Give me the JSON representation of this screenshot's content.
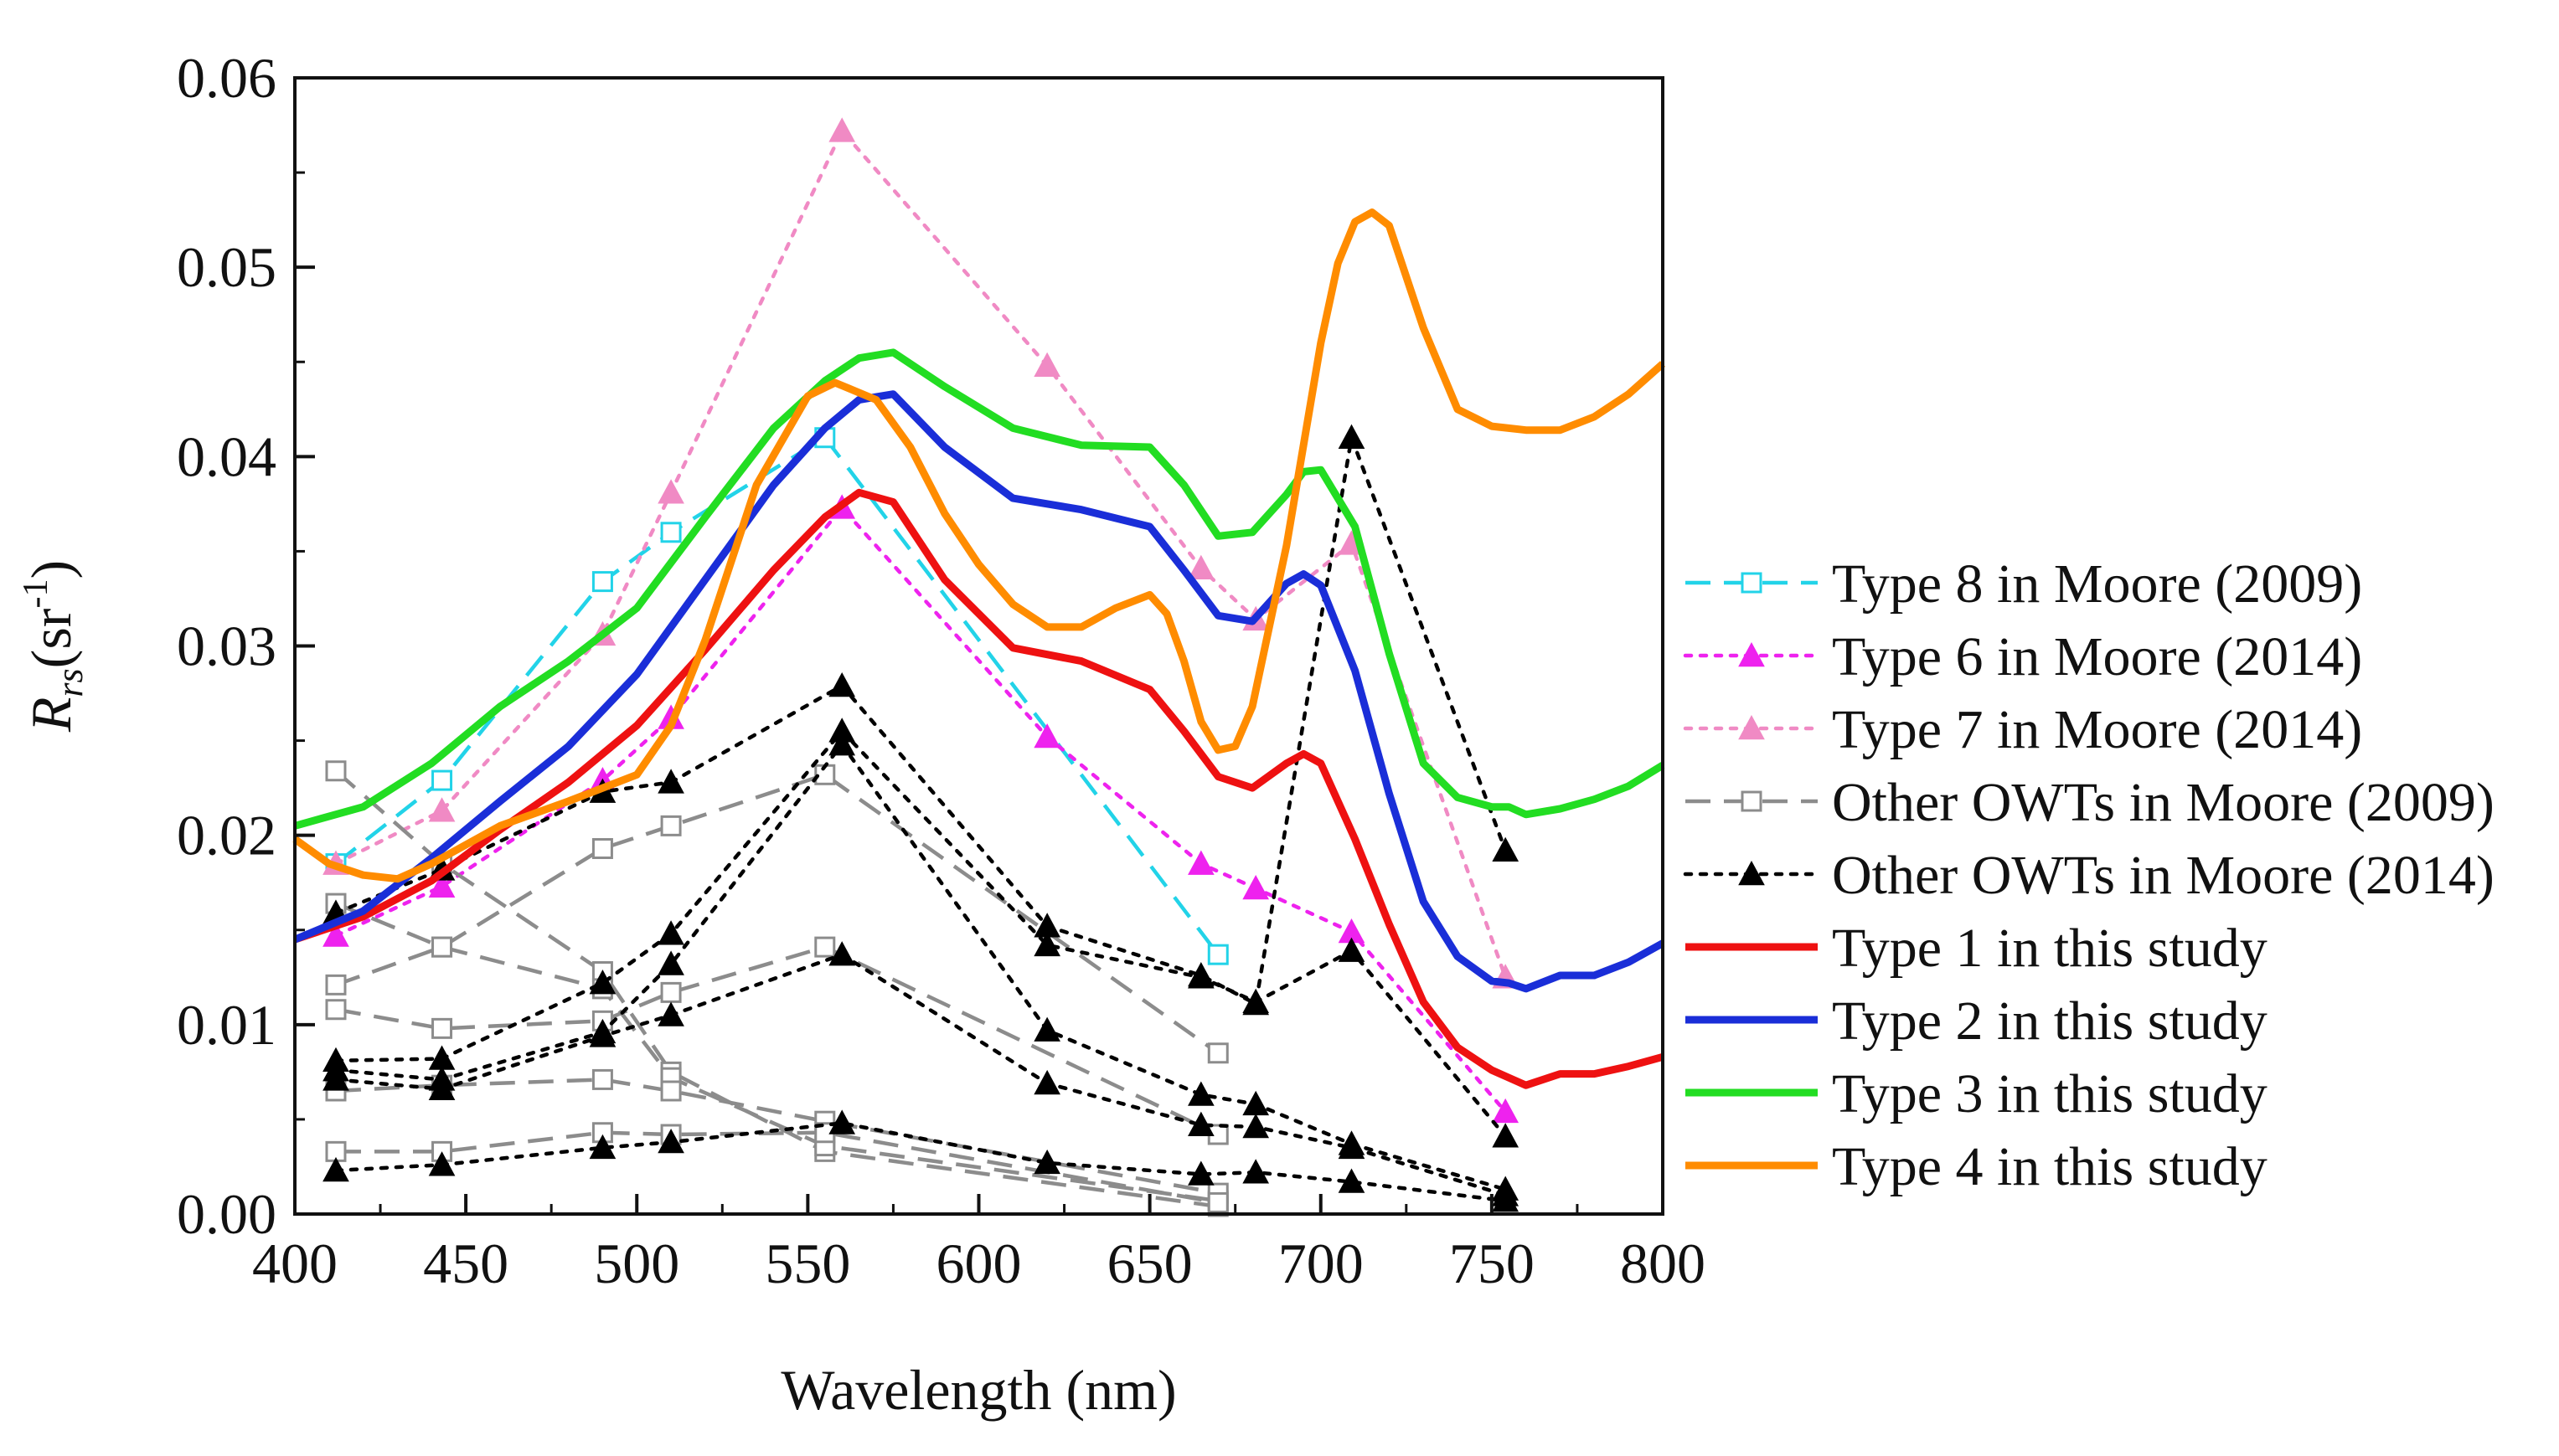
{
  "chart_data": {
    "type": "line",
    "title": "",
    "xlabel": "Wavelength (nm)",
    "ylabel": {
      "base": "R",
      "sub": "rs",
      "unit_pre": "(sr",
      "unit_sup": "-1",
      "unit_post": ")"
    },
    "xlim": [
      400,
      800
    ],
    "ylim": [
      0,
      0.06
    ],
    "xticks": [
      400,
      450,
      500,
      550,
      600,
      650,
      700,
      750,
      800
    ],
    "xtick_labels": [
      "400",
      "450",
      "500",
      "550",
      "600",
      "650",
      "700",
      "750",
      "800"
    ],
    "yticks": [
      0,
      0.01,
      0.02,
      0.03,
      0.04,
      0.05,
      0.06
    ],
    "ytick_labels": [
      "0.00",
      "0.01",
      "0.02",
      "0.03",
      "0.04",
      "0.05",
      "0.06"
    ],
    "grid": false,
    "legend_position": "right",
    "series": [
      {
        "name": "Type 8 in Moore (2009)",
        "color": "#22d3e8",
        "dash": "dash",
        "marker": "open-square",
        "x": [
          412,
          443,
          490,
          510,
          555,
          670
        ],
        "y": [
          0.0185,
          0.0229,
          0.0334,
          0.036,
          0.041,
          0.0137
        ]
      },
      {
        "name": "Type 6 in Moore (2014)",
        "color": "#ee22ee",
        "dash": "dot",
        "marker": "filled-triangle",
        "x": [
          412,
          443,
          490,
          510,
          560,
          620,
          665,
          681,
          709,
          754
        ],
        "y": [
          0.0147,
          0.0173,
          0.0229,
          0.0262,
          0.0373,
          0.0252,
          0.0185,
          0.0172,
          0.0149,
          0.0054
        ]
      },
      {
        "name": "Type 7 in Moore (2014)",
        "color": "#f08ac4",
        "dash": "dot",
        "marker": "filled-triangle",
        "x": [
          412,
          443,
          490,
          510,
          560,
          620,
          665,
          681,
          709,
          754
        ],
        "y": [
          0.0185,
          0.0213,
          0.0306,
          0.0381,
          0.0572,
          0.0448,
          0.0341,
          0.0314,
          0.0354,
          0.0125
        ]
      },
      {
        "name": "Other OWTs in Moore (2009)",
        "color": "#8c8c8c",
        "dash": "dash",
        "marker": "open-square",
        "legend": true,
        "x": [
          412,
          443,
          490,
          510,
          555,
          670
        ],
        "y": [
          0.0234,
          0.0185,
          0.0128,
          0.0075,
          0.0033,
          0.0004
        ]
      },
      {
        "name": "Other OWTs in Moore (2009)",
        "color": "#8c8c8c",
        "dash": "dash",
        "marker": "open-square",
        "legend": false,
        "x": [
          412,
          443,
          490,
          510,
          555,
          670
        ],
        "y": [
          0.0164,
          0.0141,
          0.0119,
          0.0072,
          0.0036,
          0.0007
        ]
      },
      {
        "name": "Other OWTs in Moore (2009)",
        "color": "#8c8c8c",
        "dash": "dash",
        "marker": "open-square",
        "legend": false,
        "x": [
          412,
          443,
          490,
          510,
          555,
          670
        ],
        "y": [
          0.0121,
          0.0141,
          0.0193,
          0.0205,
          0.0232,
          0.0085
        ]
      },
      {
        "name": "Other OWTs in Moore (2009)",
        "color": "#8c8c8c",
        "dash": "dash",
        "marker": "open-square",
        "legend": false,
        "x": [
          412,
          443,
          490,
          510,
          555,
          670
        ],
        "y": [
          0.0108,
          0.0098,
          0.0102,
          0.0117,
          0.0141,
          0.0042
        ]
      },
      {
        "name": "Other OWTs in Moore (2009)",
        "color": "#8c8c8c",
        "dash": "dash",
        "marker": "open-square",
        "legend": false,
        "x": [
          412,
          443,
          490,
          510,
          555,
          670
        ],
        "y": [
          0.0065,
          0.0068,
          0.0071,
          0.0065,
          0.0049,
          0.0011
        ]
      },
      {
        "name": "Other OWTs in Moore (2009)",
        "color": "#8c8c8c",
        "dash": "dash",
        "marker": "open-square",
        "legend": false,
        "x": [
          412,
          443,
          490,
          510,
          555,
          670
        ],
        "y": [
          0.0033,
          0.0033,
          0.0043,
          0.0042,
          0.0043,
          0.0006
        ]
      },
      {
        "name": "Other OWTs in Moore (2014)",
        "color": "#000000",
        "dash": "dot",
        "marker": "filled-triangle",
        "legend": true,
        "x": [
          412,
          443,
          490,
          510,
          560,
          620,
          665,
          681,
          709,
          754
        ],
        "y": [
          0.0159,
          0.0182,
          0.0223,
          0.0228,
          0.0279,
          0.0152,
          0.0126,
          0.0111,
          0.041,
          0.0192
        ]
      },
      {
        "name": "Other OWTs in Moore (2014)",
        "color": "#000000",
        "dash": "dot",
        "marker": "filled-triangle",
        "legend": false,
        "x": [
          412,
          443,
          490,
          510,
          560,
          620,
          665,
          681,
          709,
          754
        ],
        "y": [
          0.0081,
          0.0082,
          0.0122,
          0.0148,
          0.0255,
          0.0142,
          0.0125,
          0.0112,
          0.0139,
          0.0041
        ]
      },
      {
        "name": "Other OWTs in Moore (2014)",
        "color": "#000000",
        "dash": "dot",
        "marker": "filled-triangle",
        "legend": false,
        "x": [
          412,
          443,
          490,
          510,
          560,
          620,
          665,
          681,
          709,
          754
        ],
        "y": [
          0.0076,
          0.0071,
          0.0096,
          0.0132,
          0.0248,
          0.0097,
          0.0063,
          0.0058,
          0.0037,
          0.0013
        ]
      },
      {
        "name": "Other OWTs in Moore (2014)",
        "color": "#000000",
        "dash": "dot",
        "marker": "filled-triangle",
        "legend": false,
        "x": [
          412,
          443,
          490,
          510,
          560,
          620,
          665,
          681,
          709,
          754
        ],
        "y": [
          0.0071,
          0.0066,
          0.0094,
          0.0105,
          0.0137,
          0.0069,
          0.0047,
          0.0046,
          0.0035,
          0.001
        ]
      },
      {
        "name": "Other OWTs in Moore (2014)",
        "color": "#000000",
        "dash": "dot",
        "marker": "filled-triangle",
        "legend": false,
        "x": [
          412,
          443,
          490,
          510,
          560,
          620,
          665,
          681,
          709,
          754
        ],
        "y": [
          0.0023,
          0.0026,
          0.0035,
          0.0038,
          0.0048,
          0.0027,
          0.0021,
          0.0022,
          0.0017,
          0.0007
        ]
      },
      {
        "name": "Type 1 in this study",
        "color": "#ee1111",
        "dash": "solid",
        "marker": "none",
        "x": [
          400,
          420,
          440,
          460,
          480,
          500,
          520,
          540,
          555,
          565,
          575,
          590,
          610,
          630,
          650,
          660,
          670,
          680,
          690,
          695,
          700,
          710,
          720,
          730,
          740,
          750,
          755,
          760,
          770,
          780,
          790,
          800
        ],
        "y": [
          0.0145,
          0.0157,
          0.0176,
          0.0203,
          0.0228,
          0.0258,
          0.0298,
          0.034,
          0.0368,
          0.0381,
          0.0376,
          0.0335,
          0.0299,
          0.0292,
          0.0277,
          0.0255,
          0.0231,
          0.0225,
          0.0238,
          0.0243,
          0.0238,
          0.0198,
          0.0153,
          0.0112,
          0.0088,
          0.0076,
          0.0072,
          0.0068,
          0.0074,
          0.0074,
          0.0078,
          0.0083
        ]
      },
      {
        "name": "Type 2 in this study",
        "color": "#1a2ed8",
        "dash": "solid",
        "marker": "none",
        "x": [
          400,
          420,
          440,
          460,
          480,
          500,
          520,
          540,
          555,
          565,
          575,
          590,
          610,
          630,
          650,
          660,
          670,
          680,
          690,
          695,
          700,
          710,
          720,
          730,
          740,
          750,
          755,
          760,
          770,
          780,
          790,
          800
        ],
        "y": [
          0.0145,
          0.016,
          0.0188,
          0.0218,
          0.0247,
          0.0285,
          0.0335,
          0.0385,
          0.0415,
          0.043,
          0.0433,
          0.0405,
          0.0378,
          0.0372,
          0.0363,
          0.034,
          0.0316,
          0.0313,
          0.0333,
          0.0338,
          0.0332,
          0.0287,
          0.0222,
          0.0165,
          0.0136,
          0.0123,
          0.0122,
          0.0119,
          0.0126,
          0.0126,
          0.0133,
          0.0143
        ]
      },
      {
        "name": "Type 3 in this study",
        "color": "#22dd22",
        "dash": "solid",
        "marker": "none",
        "x": [
          400,
          420,
          440,
          460,
          480,
          500,
          520,
          540,
          555,
          565,
          575,
          590,
          610,
          630,
          650,
          660,
          670,
          680,
          690,
          695,
          700,
          710,
          720,
          730,
          740,
          750,
          755,
          760,
          770,
          780,
          790,
          800
        ],
        "y": [
          0.0205,
          0.0215,
          0.0238,
          0.0268,
          0.0292,
          0.032,
          0.0368,
          0.0415,
          0.044,
          0.0452,
          0.0455,
          0.0437,
          0.0415,
          0.0406,
          0.0405,
          0.0385,
          0.0358,
          0.036,
          0.038,
          0.0392,
          0.0393,
          0.0363,
          0.0296,
          0.0238,
          0.022,
          0.0215,
          0.0215,
          0.0211,
          0.0214,
          0.0219,
          0.0226,
          0.0237
        ]
      },
      {
        "name": "Type 4 in this study",
        "color": "#ff8c00",
        "dash": "solid",
        "marker": "none",
        "x": [
          400,
          410,
          420,
          430,
          440,
          460,
          480,
          500,
          510,
          520,
          535,
          550,
          558,
          570,
          580,
          590,
          600,
          610,
          620,
          630,
          640,
          650,
          655,
          660,
          665,
          670,
          675,
          680,
          690,
          700,
          705,
          710,
          715,
          720,
          730,
          740,
          750,
          760,
          770,
          780,
          790,
          800
        ],
        "y": [
          0.0198,
          0.0185,
          0.0179,
          0.0177,
          0.0185,
          0.0205,
          0.0218,
          0.0232,
          0.0258,
          0.0303,
          0.0385,
          0.0432,
          0.0439,
          0.043,
          0.0405,
          0.037,
          0.0343,
          0.0322,
          0.031,
          0.031,
          0.032,
          0.0327,
          0.0317,
          0.0292,
          0.026,
          0.0245,
          0.0247,
          0.0268,
          0.0353,
          0.046,
          0.0502,
          0.0524,
          0.0529,
          0.0522,
          0.0468,
          0.0425,
          0.0416,
          0.0414,
          0.0414,
          0.0421,
          0.0433,
          0.0449
        ]
      }
    ]
  }
}
